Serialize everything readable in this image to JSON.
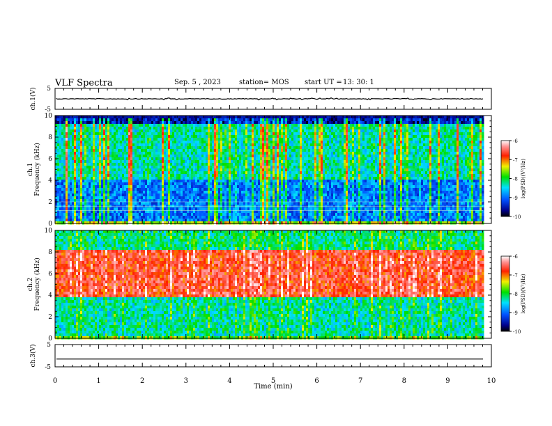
{
  "header": {
    "title": "VLF Spectra",
    "date": "Sep. 5 , 2023",
    "station": "station= MOS",
    "start_label": "start  UT  =",
    "start_time": "13: 30: 1"
  },
  "chart_data": {
    "type": "heatmap",
    "x_axis": {
      "label": "Time  (min)",
      "range": [
        0,
        10
      ],
      "ticks": [
        "0",
        "1",
        "2",
        "3",
        "4",
        "5",
        "6",
        "7",
        "8",
        "9",
        "10"
      ]
    },
    "panels": [
      {
        "name": "ch.1(V)",
        "kind": "waveform",
        "ylabel": "ch.1(V)",
        "ylim": [
          -5,
          5
        ],
        "yticks": [
          "5",
          "-5"
        ],
        "level": 0
      },
      {
        "name": "ch.1 spectrogram",
        "kind": "spectrogram",
        "ylabel_top": "ch.1",
        "ylabel": "Frequency  (kHz)",
        "ylim": [
          0,
          10
        ],
        "yticks": [
          "0",
          "2",
          "4",
          "6",
          "8",
          "10"
        ],
        "description_bands": [
          {
            "f_lo": 9.2,
            "f_hi": 10,
            "level": "very low"
          },
          {
            "f_lo": 4,
            "f_hi": 9.2,
            "level": "medium with intermittent bursts"
          },
          {
            "f_lo": 0.2,
            "f_hi": 4,
            "level": "low"
          }
        ],
        "bursts_per_10min": 120
      },
      {
        "name": "ch.2 spectrogram",
        "kind": "spectrogram",
        "ylabel_top": "ch.2",
        "ylabel": "Frequency  (kHz)",
        "ylim": [
          0,
          10
        ],
        "yticks": [
          "0",
          "2",
          "4",
          "6",
          "8",
          "10"
        ],
        "description_bands": [
          {
            "f_lo": 8.2,
            "f_hi": 10,
            "level": "medium"
          },
          {
            "f_lo": 3.7,
            "f_hi": 8.2,
            "level": "high"
          },
          {
            "f_lo": 0.2,
            "f_hi": 3.7,
            "level": "medium-low"
          }
        ]
      },
      {
        "name": "ch.3(V)",
        "kind": "waveform",
        "ylabel": "ch.3(V)",
        "ylim": [
          -5,
          5
        ],
        "yticks": [
          "5",
          "-5"
        ],
        "level": -1.5
      }
    ],
    "colorbars": [
      {
        "label": "log(PSD)(V²/Hz)",
        "range": [
          -10,
          -6
        ],
        "ticks": [
          "-6",
          "-7",
          "-8",
          "-9",
          "-10"
        ]
      },
      {
        "label": "log(PSD)(V²/Hz)",
        "range": [
          -10,
          -6
        ],
        "ticks": [
          "-6",
          "-7",
          "-8",
          "-9",
          "-10"
        ]
      }
    ]
  }
}
